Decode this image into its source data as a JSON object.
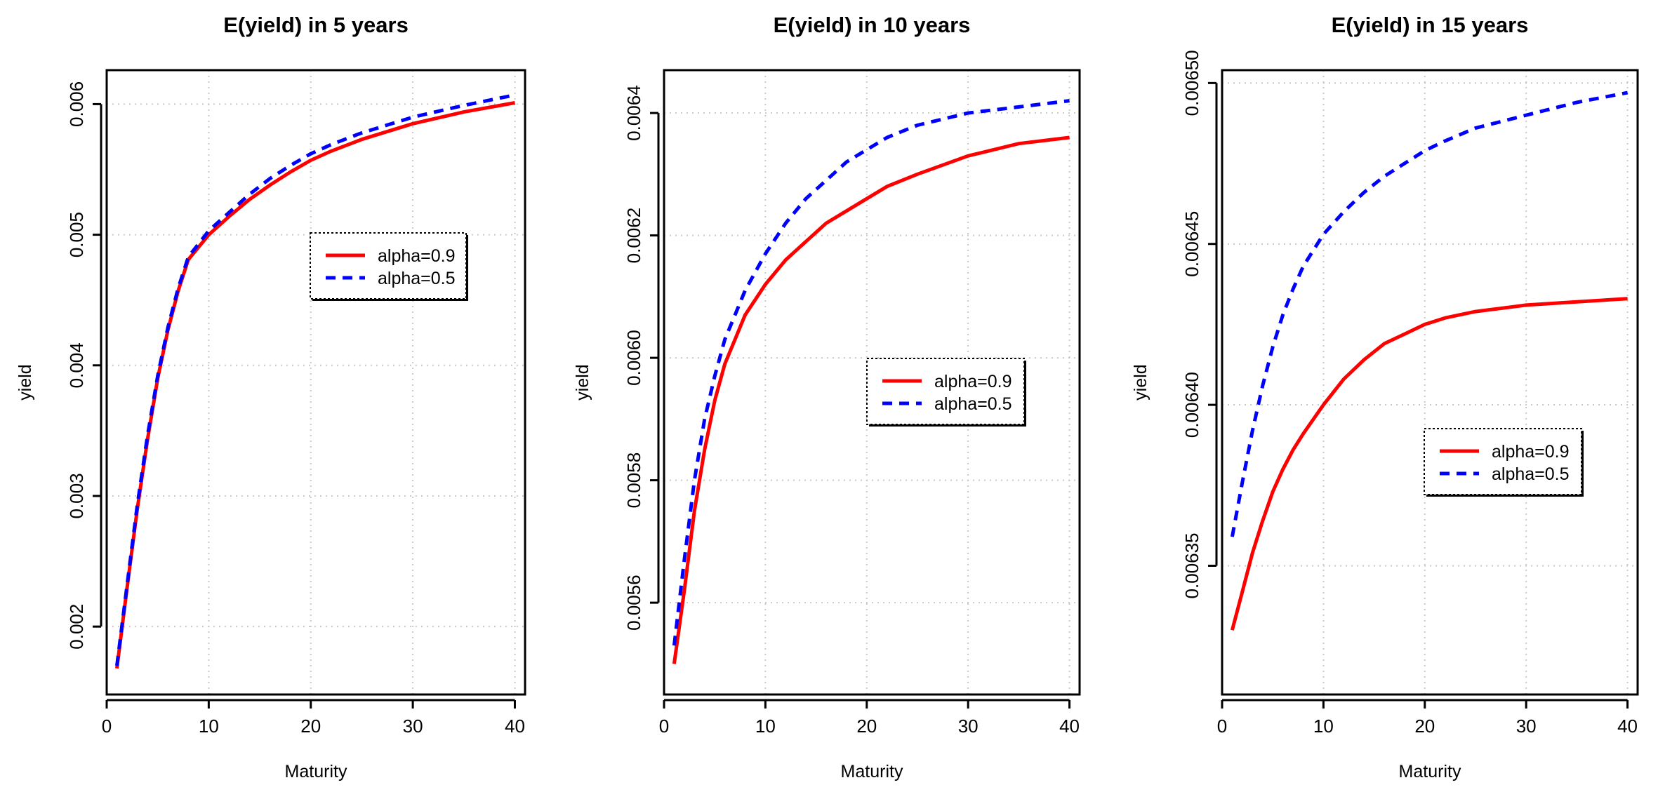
{
  "colors": {
    "series_red": "#ff0000",
    "series_blue": "#0000ff",
    "grid": "#c8c8c8",
    "frame": "#000000"
  },
  "chart_data": [
    {
      "type": "line",
      "title": "E(yield) in 5 years",
      "xlabel": "Maturity",
      "ylabel": "yield",
      "xlim": [
        0,
        41
      ],
      "ylim": [
        0.00148,
        0.00626
      ],
      "xticks": [
        0,
        10,
        20,
        30,
        40
      ],
      "xtick_labels": [
        "0",
        "10",
        "20",
        "30",
        "40"
      ],
      "yticks": [
        0.002,
        0.003,
        0.004,
        0.005,
        0.006
      ],
      "ytick_labels": [
        "0.002",
        "0.003",
        "0.004",
        "0.005",
        "0.006"
      ],
      "grid": true,
      "legend": {
        "position": "center-right",
        "entries": [
          "alpha=0.9",
          "alpha=0.5"
        ]
      },
      "series": [
        {
          "name": "alpha=0.9",
          "color": "#ff0000",
          "dash": "solid",
          "x": [
            1,
            2,
            3,
            4,
            5,
            6,
            7,
            8,
            10,
            12,
            14,
            16,
            18,
            20,
            22,
            25,
            30,
            35,
            40
          ],
          "y": [
            0.00168,
            0.0023,
            0.0029,
            0.00343,
            0.0039,
            0.00427,
            0.00457,
            0.00481,
            0.005,
            0.00514,
            0.00527,
            0.00538,
            0.00548,
            0.00557,
            0.00564,
            0.00573,
            0.00585,
            0.00594,
            0.00601
          ]
        },
        {
          "name": "alpha=0.5",
          "color": "#0000ff",
          "dash": "dashed",
          "x": [
            1,
            2,
            3,
            4,
            5,
            6,
            7,
            8,
            10,
            12,
            14,
            16,
            18,
            20,
            22,
            25,
            30,
            35,
            40
          ],
          "y": [
            0.0017,
            0.00232,
            0.00293,
            0.00346,
            0.00392,
            0.00429,
            0.00459,
            0.00483,
            0.00503,
            0.00517,
            0.00531,
            0.00543,
            0.00553,
            0.00562,
            0.00569,
            0.00578,
            0.0059,
            0.00599,
            0.00607
          ]
        }
      ]
    },
    {
      "type": "line",
      "title": "E(yield) in 10 years",
      "xlabel": "Maturity",
      "ylabel": "yield",
      "xlim": [
        0,
        41
      ],
      "ylim": [
        0.00545,
        0.00647
      ],
      "xticks": [
        0,
        10,
        20,
        30,
        40
      ],
      "xtick_labels": [
        "0",
        "10",
        "20",
        "30",
        "40"
      ],
      "yticks": [
        0.0056,
        0.0058,
        0.006,
        0.0062,
        0.0064
      ],
      "ytick_labels": [
        "0.0056",
        "0.0058",
        "0.0060",
        "0.0062",
        "0.0064"
      ],
      "grid": true,
      "legend": {
        "position": "center-right",
        "entries": [
          "alpha=0.9",
          "alpha=0.5"
        ]
      },
      "series": [
        {
          "name": "alpha=0.9",
          "color": "#ff0000",
          "dash": "solid",
          "x": [
            1,
            2,
            3,
            4,
            5,
            6,
            7,
            8,
            10,
            12,
            14,
            16,
            18,
            20,
            22,
            25,
            30,
            35,
            40
          ],
          "y": [
            0.0055,
            0.00562,
            0.00575,
            0.00585,
            0.00593,
            0.00599,
            0.00603,
            0.00607,
            0.00612,
            0.00616,
            0.00619,
            0.00622,
            0.00624,
            0.00626,
            0.00628,
            0.0063,
            0.00633,
            0.00635,
            0.00636
          ]
        },
        {
          "name": "alpha=0.5",
          "color": "#0000ff",
          "dash": "dashed",
          "x": [
            1,
            2,
            3,
            4,
            5,
            6,
            7,
            8,
            10,
            12,
            14,
            16,
            18,
            20,
            22,
            25,
            30,
            35,
            40
          ],
          "y": [
            0.00553,
            0.00567,
            0.0058,
            0.0059,
            0.00597,
            0.00603,
            0.00607,
            0.00611,
            0.00617,
            0.00622,
            0.00626,
            0.00629,
            0.00632,
            0.00634,
            0.00636,
            0.00638,
            0.0064,
            0.00641,
            0.00642
          ]
        }
      ]
    },
    {
      "type": "line",
      "title": "E(yield) in 15 years",
      "xlabel": "Maturity",
      "ylabel": "yield",
      "xlim": [
        0,
        41
      ],
      "ylim": [
        0.00631,
        0.006504
      ],
      "xticks": [
        0,
        10,
        20,
        30,
        40
      ],
      "xtick_labels": [
        "0",
        "10",
        "20",
        "30",
        "40"
      ],
      "yticks": [
        0.00635,
        0.0064,
        0.00645,
        0.0065
      ],
      "ytick_labels": [
        "0.00635",
        "0.00640",
        "0.00645",
        "0.00650"
      ],
      "grid": true,
      "legend": {
        "position": "center-right",
        "entries": [
          "alpha=0.9",
          "alpha=0.5"
        ]
      },
      "series": [
        {
          "name": "alpha=0.9",
          "color": "#ff0000",
          "dash": "solid",
          "x": [
            1,
            2,
            3,
            4,
            5,
            6,
            7,
            8,
            10,
            12,
            14,
            16,
            18,
            20,
            22,
            25,
            30,
            35,
            40
          ],
          "y": [
            0.00633,
            0.006342,
            0.006354,
            0.006364,
            0.006373,
            0.00638,
            0.006386,
            0.006391,
            0.0064,
            0.006408,
            0.006414,
            0.006419,
            0.006422,
            0.006425,
            0.006427,
            0.006429,
            0.006431,
            0.006432,
            0.006433
          ]
        },
        {
          "name": "alpha=0.5",
          "color": "#0000ff",
          "dash": "dashed",
          "x": [
            1,
            2,
            3,
            4,
            5,
            6,
            7,
            8,
            10,
            12,
            14,
            16,
            18,
            20,
            22,
            25,
            30,
            35,
            40
          ],
          "y": [
            0.006359,
            0.006376,
            0.006392,
            0.006406,
            0.006418,
            0.006428,
            0.006436,
            0.006443,
            0.006453,
            0.00646,
            0.006466,
            0.006471,
            0.006475,
            0.006479,
            0.006482,
            0.006486,
            0.00649,
            0.006494,
            0.006497
          ]
        }
      ]
    }
  ]
}
